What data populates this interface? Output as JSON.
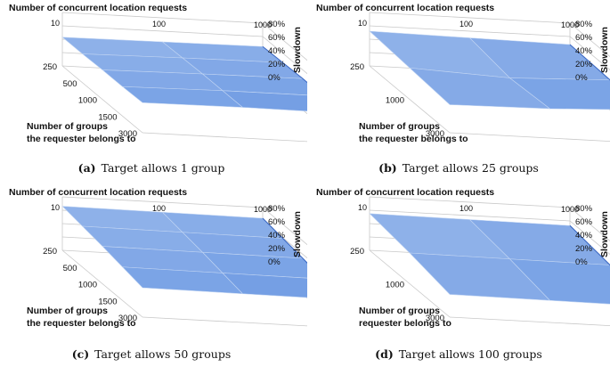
{
  "figure": {
    "colors": {
      "surface_light": "#a9c4ee",
      "surface_mid": "#5d8ee0",
      "surface_dark": "#3a67c2",
      "grid": "#c8c8c8",
      "axis_text": "#111111"
    }
  },
  "chart_data": [
    {
      "type": "surface",
      "label": "(a)",
      "caption": "Target allows 1 group",
      "x_title": "Number of concurrent location requests",
      "x_ticks": [
        "10",
        "100",
        "1000"
      ],
      "y_title_lines": [
        "Number of groups",
        "the requester belongs to"
      ],
      "y_ticks": [
        "250",
        "500",
        "1000",
        "1500",
        "3000"
      ],
      "z_title": "Slowdown",
      "z_ticks": [
        "0%",
        "20%",
        "40%",
        "60%",
        "80%"
      ],
      "zlim": [
        0,
        80
      ],
      "values": [
        [
          43,
          43,
          44,
          44,
          45
        ],
        [
          44,
          45,
          46,
          46,
          46
        ],
        [
          45,
          46,
          47,
          46,
          45
        ]
      ]
    },
    {
      "type": "surface",
      "label": "(b)",
      "caption": "Target allows 25 groups",
      "x_title": "Number of concurrent location requests",
      "x_ticks": [
        "10",
        "100",
        "1000"
      ],
      "y_title_lines": [
        "Number of groups",
        "the requester belongs to"
      ],
      "y_ticks": [
        "250",
        "1000",
        "3000"
      ],
      "z_title": "Slowdown",
      "z_ticks": [
        "0%",
        "20%",
        "40%",
        "60%",
        "80%"
      ],
      "zlim": [
        0,
        80
      ],
      "values": [
        [
          52,
          47,
          42
        ],
        [
          50,
          40,
          44
        ],
        [
          48,
          45,
          50
        ]
      ]
    },
    {
      "type": "surface",
      "label": "(c)",
      "caption": "Target allows 50 groups",
      "x_title": "Number of concurrent location requests",
      "x_ticks": [
        "10",
        "100",
        "1000"
      ],
      "y_title_lines": [
        "Number of groups",
        "the requester belongs to"
      ],
      "y_ticks": [
        "250",
        "500",
        "1000",
        "1500",
        "3000"
      ],
      "z_title": "Slowdown",
      "z_ticks": [
        "0%",
        "20%",
        "40%",
        "60%",
        "80%"
      ],
      "zlim": [
        0,
        80
      ],
      "values": [
        [
          66,
          61,
          56,
          50,
          44
        ],
        [
          65,
          60,
          55,
          49,
          43
        ],
        [
          64,
          59,
          54,
          48,
          42
        ]
      ]
    },
    {
      "type": "surface",
      "label": "(d)",
      "caption": "Target allows 100 groups",
      "x_title": "Number of concurrent location requests",
      "x_ticks": [
        "10",
        "100",
        "1000"
      ],
      "y_title_lines": [
        "Number of groups",
        "requester belongs to"
      ],
      "y_ticks": [
        "250",
        "1000",
        "3000"
      ],
      "z_title": "Slowdown",
      "z_ticks": [
        "0%",
        "20%",
        "40%",
        "60%",
        "80%"
      ],
      "zlim": [
        0,
        80
      ],
      "values": [
        [
          55,
          46,
          34
        ],
        [
          54,
          45,
          33
        ],
        [
          53,
          44,
          32
        ]
      ]
    }
  ]
}
